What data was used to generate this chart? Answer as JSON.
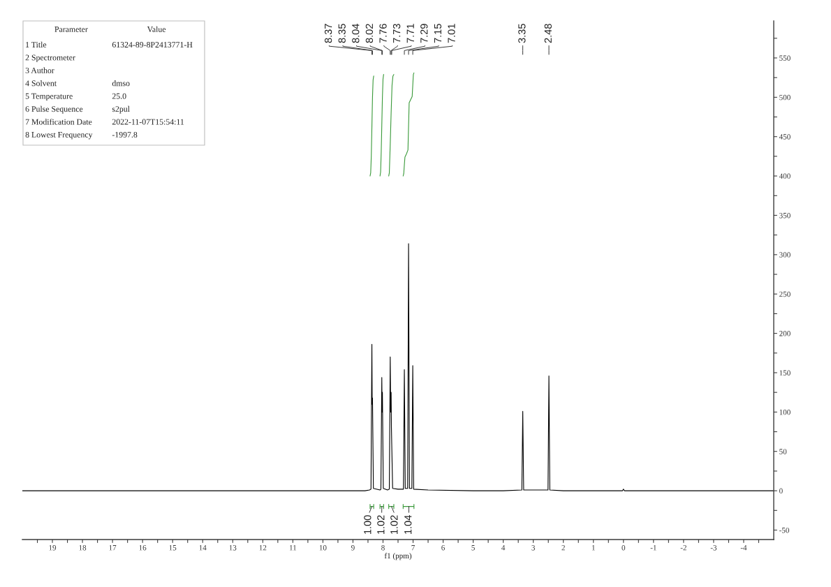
{
  "chart_data": [
    {
      "type": "line",
      "xlabel": "f1 (ppm)",
      "xlim": [
        20,
        -5
      ],
      "xticks": [
        {
          "value": 19.5,
          "label": null
        },
        19,
        {
          "value": 18.5,
          "label": null
        },
        18,
        {
          "value": 17.5,
          "label": null
        },
        17,
        {
          "value": 16.5,
          "label": null
        },
        16,
        {
          "value": 15.5,
          "label": null
        },
        15,
        {
          "value": 14.5,
          "label": null
        },
        14,
        {
          "value": 13.5,
          "label": null
        },
        13,
        {
          "value": 12.5,
          "label": null
        },
        12,
        {
          "value": 11.5,
          "label": null
        },
        11,
        {
          "value": 10.5,
          "label": null
        },
        10,
        {
          "value": 9.5,
          "label": null
        },
        9,
        {
          "value": 8.5,
          "label": null
        },
        8,
        {
          "value": 7.5,
          "label": null
        },
        7,
        {
          "value": 6.5,
          "label": null
        },
        6,
        {
          "value": 5.5,
          "label": null
        },
        5,
        {
          "value": 4.5,
          "label": null
        },
        4,
        {
          "value": 3.5,
          "label": null
        },
        3,
        {
          "value": 2.5,
          "label": null
        },
        2,
        {
          "value": 1.5,
          "label": null
        },
        1,
        {
          "value": 0.5,
          "label": null
        },
        0,
        {
          "value": -0.5,
          "label": null
        },
        -1,
        {
          "value": -1.5,
          "label": null
        },
        -2,
        {
          "value": -2.5,
          "label": null
        },
        -3,
        {
          "value": -3.5,
          "label": null
        },
        -4,
        {
          "value": -4.5,
          "label": null
        }
      ],
      "ylim": [
        -62,
        597
      ],
      "yticks": [
        -50,
        {
          "value": -25,
          "label": null
        },
        0,
        {
          "value": 25,
          "label": null
        },
        50,
        {
          "value": 75,
          "label": null
        },
        100,
        {
          "value": 125,
          "label": null
        },
        150,
        {
          "value": 175,
          "label": null
        },
        200,
        {
          "value": 225,
          "label": null
        },
        250,
        {
          "value": 275,
          "label": null
        },
        300,
        {
          "value": 325,
          "label": null
        },
        350,
        {
          "value": 375,
          "label": null
        },
        400,
        {
          "value": 425,
          "label": null
        },
        450,
        {
          "value": 475,
          "label": null
        },
        500,
        {
          "value": 525,
          "label": null
        },
        550,
        {
          "value": 575,
          "label": null
        }
      ],
      "series": [
        {
          "color": "#000000",
          "x": [
            20,
            15,
            10,
            8.6,
            8.45,
            8.4,
            8.37,
            8.36,
            8.35,
            8.32,
            8.1,
            8.07,
            8.04,
            8.03,
            8.02,
            7.99,
            7.85,
            7.79,
            7.76,
            7.745,
            7.73,
            7.72,
            7.71,
            7.68,
            7.5,
            7.32,
            7.29,
            7.26,
            7.18,
            7.15,
            7.12,
            7.04,
            7.01,
            6.98,
            6.5,
            5,
            4,
            3.38,
            3.35,
            3.32,
            2.51,
            2.48,
            2.45,
            2,
            1,
            0.03,
            0,
            -0.03,
            -5
          ],
          "values": [
            0,
            0,
            0,
            0,
            1,
            2,
            186,
            110,
            118,
            3,
            1,
            2,
            144,
            100,
            125,
            3,
            1,
            2,
            170,
            100,
            125,
            80,
            60,
            3,
            2,
            2,
            154,
            3,
            3,
            314,
            3,
            3,
            159,
            2,
            1,
            0,
            0,
            1,
            101,
            1,
            1,
            146,
            1,
            0,
            0,
            0,
            2,
            0,
            0
          ]
        },
        {
          "color": "#3a9a3a",
          "x": [
            8.43,
            8.41,
            8.39,
            8.37,
            8.35,
            8.33,
            8.31
          ],
          "values": [
            400,
            404,
            425,
            462,
            500,
            522,
            527
          ]
        },
        {
          "color": "#3a9a3a",
          "x": [
            8.1,
            8.08,
            8.06,
            8.04,
            8.02,
            8.0,
            7.98
          ],
          "values": [
            400,
            405,
            430,
            465,
            500,
            523,
            529
          ]
        },
        {
          "color": "#3a9a3a",
          "x": [
            7.81,
            7.79,
            7.76,
            7.73,
            7.7,
            7.67,
            7.64
          ],
          "values": [
            400,
            404,
            440,
            480,
            515,
            527,
            529
          ]
        },
        {
          "color": "#3a9a3a",
          "x": [
            7.33,
            7.31,
            7.29,
            7.27,
            7.22,
            7.17,
            7.15,
            7.13,
            7.08,
            7.03,
            7.01,
            6.99,
            6.97
          ],
          "values": [
            400,
            403,
            414,
            424,
            428,
            433,
            463,
            493,
            497,
            501,
            515,
            529,
            531
          ]
        }
      ],
      "annotations": [
        {
          "text": "8.37",
          "x": 8.37
        },
        {
          "text": "8.35",
          "x": 8.35
        },
        {
          "text": "8.04",
          "x": 8.04
        },
        {
          "text": "8.02",
          "x": 8.02
        },
        {
          "text": "7.76",
          "x": 7.76
        },
        {
          "text": "7.73",
          "x": 7.73
        },
        {
          "text": "7.71",
          "x": 7.71
        },
        {
          "text": "7.29",
          "x": 7.29
        },
        {
          "text": "7.15",
          "x": 7.15
        },
        {
          "text": "7.01",
          "x": 7.01
        },
        {
          "text": "3.35",
          "x": 3.35
        },
        {
          "text": "2.48",
          "x": 2.48
        },
        {
          "text": "1.00",
          "x": 8.37,
          "y": -20
        },
        {
          "text": "1.02",
          "x": 8.04,
          "y": -20
        },
        {
          "text": "1.02",
          "x": 7.72,
          "y": -20
        },
        {
          "text": "1.04",
          "x": 7.14,
          "y": -20
        }
      ]
    },
    {
      "type": "other",
      "annotations": [
        "Parameter\tValue",
        "1 Title\t61324-89-8P2413771-H",
        "2 Spectrometer",
        "3 Author",
        "4 Solvent\tdmso",
        "5 Temperature\t25.0",
        "6 Pulse Sequence\ts2pul",
        "7 Modification Date\t2022-11-07T15:54:11",
        "8 Lowest Frequency\t-1997.8"
      ]
    }
  ]
}
